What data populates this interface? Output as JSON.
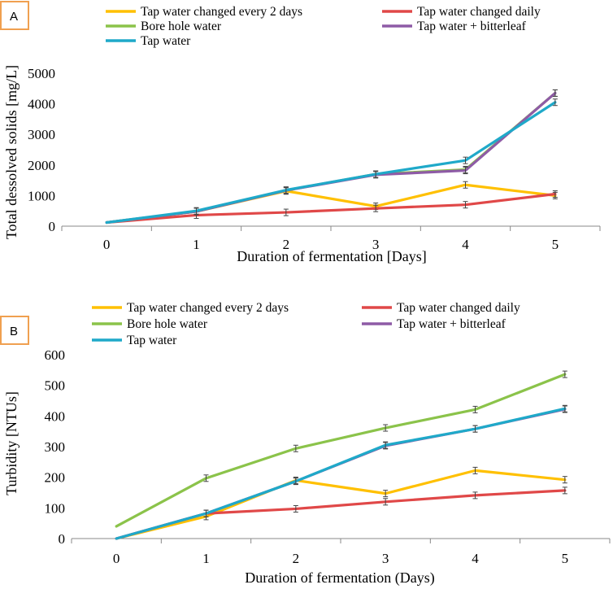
{
  "chart_data": [
    {
      "type": "line",
      "panel_label": "A",
      "xlabel": "Duration of fermentation [Days]",
      "ylabel": "Total dessolved solids [mg/L]",
      "x": [
        0,
        1,
        2,
        3,
        4,
        5
      ],
      "xlim": [
        -0.5,
        5.5
      ],
      "ylim": [
        0,
        5000
      ],
      "yticks": [
        0,
        1000,
        2000,
        3000,
        4000,
        5000
      ],
      "xticks": [
        0,
        1,
        2,
        3,
        4,
        5
      ],
      "legend_position": "top",
      "series": [
        {
          "name": "Tap water changed every 2 days",
          "color": "#FFC000",
          "values": [
            120,
            480,
            1150,
            650,
            1350,
            1000
          ]
        },
        {
          "name": "Tap water changed daily",
          "color": "#E04848",
          "values": [
            120,
            360,
            450,
            580,
            700,
            1050
          ]
        },
        {
          "name": "Bore hole water",
          "color": "#8BC34A",
          "values": [
            120,
            480,
            1170,
            1700,
            1850,
            4350
          ]
        },
        {
          "name": "Tap water + bitterleaf",
          "color": "#8E5BA6",
          "values": [
            120,
            480,
            1170,
            1680,
            1820,
            4350
          ]
        },
        {
          "name": "Tap water",
          "color": "#1FA9C9",
          "values": [
            120,
            500,
            1180,
            1700,
            2150,
            4050
          ]
        }
      ]
    },
    {
      "type": "line",
      "panel_label": "B",
      "xlabel": "Duration of fermentation (Days)",
      "ylabel": "Turbidity [NTUs]",
      "x": [
        0,
        1,
        2,
        3,
        4,
        5
      ],
      "xlim": [
        -0.5,
        5.5
      ],
      "ylim": [
        0,
        600
      ],
      "yticks": [
        0,
        100,
        200,
        300,
        400,
        500,
        600
      ],
      "xticks": [
        0,
        1,
        2,
        3,
        4,
        5
      ],
      "legend_position": "top",
      "series": [
        {
          "name": "Tap water changed every 2 days",
          "color": "#FFC000",
          "values": [
            0,
            72,
            190,
            147,
            222,
            192
          ]
        },
        {
          "name": "Tap water changed daily",
          "color": "#E04848",
          "values": [
            0,
            82,
            97,
            120,
            141,
            157
          ]
        },
        {
          "name": "Bore hole water",
          "color": "#8BC34A",
          "values": [
            40,
            197,
            294,
            361,
            421,
            536
          ]
        },
        {
          "name": "Tap water + bitterleaf",
          "color": "#8E5BA6",
          "values": [
            0,
            82,
            187,
            303,
            358,
            422
          ]
        },
        {
          "name": "Tap water",
          "color": "#1FA9C9",
          "values": [
            0,
            82,
            187,
            305,
            358,
            424
          ]
        }
      ]
    }
  ]
}
